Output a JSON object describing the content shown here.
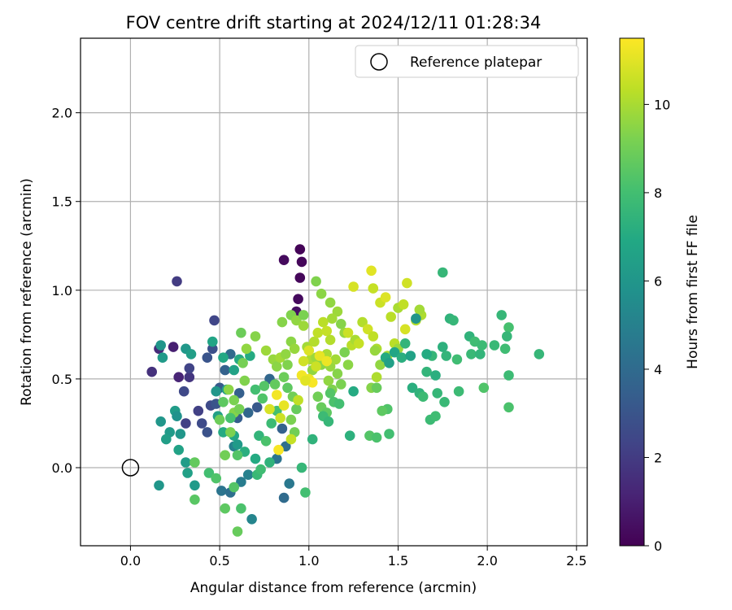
{
  "chart_data": {
    "type": "scatter",
    "title": "FOV centre drift starting at 2024/12/11 01:28:34",
    "xlabel": "Angular distance from reference (arcmin)",
    "ylabel": "Rotation from reference (arcmin)",
    "xlim": [
      -0.28,
      2.56
    ],
    "ylim": [
      -0.44,
      2.42
    ],
    "x_ticks": [
      "0.0",
      "0.5",
      "1.0",
      "1.5",
      "2.0",
      "2.5"
    ],
    "x_tick_values": [
      0,
      0.5,
      1.0,
      1.5,
      2.0,
      2.5
    ],
    "y_ticks": [
      "0.0",
      "0.5",
      "1.0",
      "1.5",
      "2.0"
    ],
    "y_tick_values": [
      0,
      0.5,
      1.0,
      1.5,
      2.0
    ],
    "grid": true,
    "legend_position": "top-right",
    "reference": {
      "label": "Reference platepar",
      "x": 0.0,
      "y": 0.0
    },
    "colorbar": {
      "label": "Hours from first FF file",
      "colormap": "viridis",
      "range": [
        0,
        11.5
      ],
      "ticks": [
        "0",
        "2",
        "4",
        "6",
        "8",
        "10"
      ],
      "tick_values": [
        0,
        2,
        4,
        6,
        8,
        10
      ]
    },
    "points": [
      [
        0.95,
        1.23,
        0.1
      ],
      [
        0.96,
        1.16,
        0.2
      ],
      [
        0.86,
        1.17,
        0.3
      ],
      [
        0.95,
        1.07,
        0.2
      ],
      [
        0.94,
        0.95,
        0.3
      ],
      [
        0.93,
        0.88,
        0.5
      ],
      [
        0.24,
        0.68,
        1.0
      ],
      [
        0.16,
        0.67,
        1.4
      ],
      [
        0.12,
        0.54,
        1.6
      ],
      [
        0.27,
        0.51,
        1.2
      ],
      [
        0.33,
        0.51,
        1.8
      ],
      [
        0.33,
        0.56,
        2.3
      ],
      [
        0.26,
        1.05,
        2.0
      ],
      [
        0.47,
        0.83,
        2.4
      ],
      [
        0.46,
        0.67,
        2.8
      ],
      [
        0.43,
        0.62,
        3.0
      ],
      [
        0.3,
        0.43,
        2.5
      ],
      [
        0.38,
        0.32,
        2.2
      ],
      [
        0.45,
        0.35,
        2.6
      ],
      [
        0.48,
        0.36,
        3.0
      ],
      [
        0.31,
        0.25,
        2.2
      ],
      [
        0.4,
        0.25,
        2.6
      ],
      [
        0.43,
        0.2,
        2.9
      ],
      [
        0.5,
        0.45,
        3.3
      ],
      [
        0.53,
        0.55,
        3.6
      ],
      [
        0.56,
        0.64,
        4.0
      ],
      [
        0.61,
        0.42,
        3.5
      ],
      [
        0.6,
        0.28,
        3.4
      ],
      [
        0.66,
        0.31,
        3.8
      ],
      [
        0.71,
        0.34,
        3.2
      ],
      [
        0.78,
        0.5,
        3.8
      ],
      [
        0.85,
        0.22,
        3.6
      ],
      [
        0.87,
        0.12,
        4.2
      ],
      [
        0.82,
        0.05,
        4.4
      ],
      [
        0.89,
        -0.09,
        4.6
      ],
      [
        0.86,
        -0.17,
        4.0
      ],
      [
        0.51,
        -0.13,
        4.4
      ],
      [
        0.56,
        -0.14,
        4.2
      ],
      [
        0.62,
        -0.08,
        4.8
      ],
      [
        0.66,
        -0.04,
        5.0
      ],
      [
        0.68,
        -0.29,
        5.2
      ],
      [
        0.58,
        0.12,
        5.0
      ],
      [
        0.17,
        0.69,
        6.0
      ],
      [
        0.18,
        0.62,
        6.2
      ],
      [
        0.17,
        0.26,
        6.0
      ],
      [
        0.22,
        0.2,
        6.2
      ],
      [
        0.2,
        0.16,
        6.4
      ],
      [
        0.25,
        0.32,
        6.3
      ],
      [
        0.26,
        0.29,
        5.8
      ],
      [
        0.28,
        0.19,
        6.0
      ],
      [
        0.27,
        0.1,
        6.6
      ],
      [
        0.31,
        0.03,
        6.3
      ],
      [
        0.32,
        -0.03,
        6.5
      ],
      [
        0.36,
        -0.1,
        6.2
      ],
      [
        0.16,
        -0.1,
        6.0
      ],
      [
        0.31,
        0.67,
        6.1
      ],
      [
        0.34,
        0.64,
        6.4
      ],
      [
        0.46,
        0.71,
        6.7
      ],
      [
        0.52,
        0.62,
        6.9
      ],
      [
        0.61,
        0.61,
        7.0
      ],
      [
        0.67,
        0.63,
        7.0
      ],
      [
        0.58,
        0.55,
        6.6
      ],
      [
        0.54,
        0.44,
        6.4
      ],
      [
        0.48,
        0.43,
        6.0
      ],
      [
        0.49,
        0.29,
        6.5
      ],
      [
        0.52,
        0.2,
        7.0
      ],
      [
        0.58,
        0.18,
        6.8
      ],
      [
        0.6,
        0.13,
        6.2
      ],
      [
        0.64,
        0.09,
        7.2
      ],
      [
        0.7,
        0.05,
        7.0
      ],
      [
        0.72,
        0.18,
        7.5
      ],
      [
        0.78,
        0.03,
        7.4
      ],
      [
        0.71,
        -0.04,
        7.7
      ],
      [
        0.73,
        -0.01,
        7.9
      ],
      [
        0.76,
        0.15,
        8.2
      ],
      [
        0.79,
        0.25,
        7.8
      ],
      [
        0.82,
        0.32,
        8.0
      ],
      [
        0.74,
        0.39,
        8.3
      ],
      [
        0.7,
        0.44,
        8.0
      ],
      [
        0.75,
        0.46,
        8.4
      ],
      [
        0.81,
        0.47,
        8.7
      ],
      [
        0.86,
        0.51,
        8.9
      ],
      [
        0.88,
        0.45,
        8.6
      ],
      [
        0.91,
        0.4,
        9.0
      ],
      [
        0.93,
        0.33,
        8.8
      ],
      [
        0.9,
        0.27,
        9.2
      ],
      [
        0.92,
        0.2,
        9.0
      ],
      [
        0.96,
        0.0,
        7.6
      ],
      [
        0.98,
        -0.14,
        8.0
      ],
      [
        0.36,
        -0.18,
        8.5
      ],
      [
        0.36,
        0.03,
        8.7
      ],
      [
        0.44,
        -0.03,
        8.0
      ],
      [
        0.48,
        -0.06,
        8.3
      ],
      [
        0.53,
        -0.23,
        8.6
      ],
      [
        0.58,
        -0.11,
        8.4
      ],
      [
        0.6,
        -0.36,
        8.8
      ],
      [
        0.62,
        -0.23,
        8.2
      ],
      [
        0.53,
        0.07,
        9.0
      ],
      [
        0.56,
        0.2,
        9.2
      ],
      [
        0.58,
        0.31,
        9.4
      ],
      [
        0.61,
        0.33,
        9.1
      ],
      [
        0.64,
        0.49,
        9.3
      ],
      [
        0.52,
        0.37,
        8.6
      ],
      [
        0.5,
        0.27,
        8.9
      ],
      [
        0.56,
        0.28,
        8.1
      ],
      [
        0.6,
        0.07,
        8.4
      ],
      [
        0.55,
        0.44,
        9.5
      ],
      [
        0.58,
        0.38,
        9.2
      ],
      [
        0.63,
        0.59,
        9.1
      ],
      [
        0.65,
        0.67,
        9.6
      ],
      [
        0.7,
        0.74,
        9.4
      ],
      [
        0.62,
        0.76,
        8.9
      ],
      [
        0.76,
        0.66,
        9.8
      ],
      [
        0.8,
        0.61,
        9.7
      ],
      [
        0.82,
        0.57,
        9.5
      ],
      [
        0.84,
        0.62,
        9.9
      ],
      [
        0.87,
        0.64,
        9.6
      ],
      [
        0.88,
        0.58,
        9.3
      ],
      [
        0.9,
        0.71,
        9.5
      ],
      [
        0.92,
        0.67,
        9.7
      ],
      [
        0.85,
        0.82,
        9.4
      ],
      [
        0.9,
        0.86,
        9.3
      ],
      [
        0.93,
        0.83,
        9.6
      ],
      [
        0.97,
        0.8,
        9.8
      ],
      [
        0.97,
        0.86,
        9.2
      ],
      [
        0.99,
        0.68,
        9.9
      ],
      [
        1.01,
        0.61,
        10.1
      ],
      [
        1.03,
        0.71,
        10.2
      ],
      [
        1.05,
        0.76,
        10.4
      ],
      [
        1.02,
        0.55,
        9.6
      ],
      [
        1.04,
        0.62,
        9.8
      ],
      [
        1.07,
        0.58,
        9.5
      ],
      [
        1.1,
        0.64,
        10.0
      ],
      [
        1.12,
        0.57,
        9.7
      ],
      [
        1.15,
        0.61,
        9.9
      ],
      [
        1.11,
        0.49,
        9.6
      ],
      [
        1.13,
        0.44,
        9.3
      ],
      [
        1.16,
        0.53,
        9.4
      ],
      [
        1.18,
        0.47,
        9.2
      ],
      [
        1.05,
        0.4,
        9.0
      ],
      [
        1.07,
        0.34,
        8.8
      ],
      [
        1.1,
        0.31,
        8.6
      ],
      [
        1.12,
        0.42,
        8.4
      ],
      [
        1.14,
        0.37,
        8.2
      ],
      [
        1.17,
        0.36,
        8.0
      ],
      [
        1.08,
        0.29,
        7.8
      ],
      [
        1.11,
        0.26,
        7.6
      ],
      [
        1.02,
        0.16,
        7.4
      ],
      [
        1.04,
        1.05,
        9.3
      ],
      [
        1.07,
        0.98,
        9.5
      ],
      [
        1.12,
        0.93,
        9.6
      ],
      [
        1.16,
        0.88,
        9.8
      ],
      [
        1.18,
        0.81,
        9.4
      ],
      [
        1.2,
        0.76,
        9.7
      ],
      [
        1.13,
        0.84,
        9.9
      ],
      [
        1.22,
        0.76,
        10.6
      ],
      [
        1.24,
        0.69,
        10.3
      ],
      [
        1.26,
        0.72,
        10.0
      ],
      [
        1.28,
        0.7,
        10.5
      ],
      [
        1.3,
        0.82,
        10.2
      ],
      [
        1.33,
        0.78,
        10.7
      ],
      [
        1.36,
        0.74,
        10.4
      ],
      [
        1.38,
        0.67,
        10.1
      ],
      [
        1.25,
        1.02,
        10.8
      ],
      [
        1.35,
        1.11,
        11.0
      ],
      [
        1.36,
        1.01,
        10.5
      ],
      [
        1.4,
        0.93,
        10.6
      ],
      [
        1.43,
        0.96,
        10.9
      ],
      [
        1.46,
        0.85,
        10.3
      ],
      [
        1.5,
        0.9,
        10.0
      ],
      [
        1.53,
        0.92,
        10.4
      ],
      [
        1.55,
        1.04,
        10.7
      ],
      [
        1.54,
        0.78,
        10.8
      ],
      [
        1.6,
        0.83,
        10.2
      ],
      [
        1.63,
        0.86,
        10.1
      ],
      [
        1.62,
        0.89,
        9.9
      ],
      [
        1.48,
        0.7,
        10.3
      ],
      [
        1.5,
        0.67,
        9.8
      ],
      [
        1.44,
        0.63,
        10.0
      ],
      [
        1.4,
        0.58,
        9.6
      ],
      [
        1.38,
        0.51,
        10.1
      ],
      [
        1.35,
        0.45,
        9.4
      ],
      [
        1.37,
        0.66,
        9.7
      ],
      [
        1.22,
        0.58,
        9.5
      ],
      [
        1.2,
        0.65,
        9.2
      ],
      [
        1.34,
        0.18,
        8.4
      ],
      [
        1.38,
        0.17,
        8.2
      ],
      [
        1.45,
        0.19,
        8.0
      ],
      [
        1.44,
        0.33,
        8.3
      ],
      [
        1.41,
        0.32,
        8.6
      ],
      [
        1.38,
        0.45,
        8.8
      ],
      [
        1.25,
        0.43,
        7.0
      ],
      [
        1.23,
        0.18,
        7.3
      ],
      [
        1.43,
        0.62,
        7.0
      ],
      [
        1.45,
        0.59,
        6.5
      ],
      [
        1.48,
        0.65,
        6.8
      ],
      [
        1.52,
        0.62,
        7.2
      ],
      [
        1.54,
        0.7,
        7.5
      ],
      [
        1.57,
        0.63,
        6.6
      ],
      [
        1.6,
        0.84,
        6.0
      ],
      [
        1.58,
        0.45,
        7.2
      ],
      [
        1.62,
        0.42,
        7.4
      ],
      [
        1.64,
        0.4,
        7.8
      ],
      [
        1.66,
        0.54,
        7.5
      ],
      [
        1.69,
        0.63,
        7.6
      ],
      [
        1.66,
        0.64,
        7.0
      ],
      [
        1.71,
        0.52,
        7.2
      ],
      [
        1.68,
        0.27,
        7.8
      ],
      [
        1.71,
        0.29,
        7.9
      ],
      [
        1.72,
        0.42,
        7.6
      ],
      [
        1.75,
        0.68,
        7.3
      ],
      [
        1.77,
        0.63,
        7.5
      ],
      [
        1.76,
        0.37,
        7.7
      ],
      [
        1.79,
        0.84,
        7.4
      ],
      [
        1.81,
        0.83,
        7.6
      ],
      [
        1.83,
        0.61,
        7.9
      ],
      [
        1.84,
        0.43,
        7.8
      ],
      [
        1.75,
        1.1,
        7.6
      ],
      [
        1.9,
        0.74,
        7.4
      ],
      [
        1.91,
        0.64,
        7.7
      ],
      [
        1.93,
        0.71,
        7.9
      ],
      [
        1.96,
        0.64,
        7.5
      ],
      [
        1.97,
        0.69,
        7.8
      ],
      [
        1.98,
        0.45,
        8.3
      ],
      [
        2.04,
        0.69,
        7.7
      ],
      [
        2.08,
        0.86,
        7.6
      ],
      [
        2.1,
        0.67,
        7.9
      ],
      [
        2.12,
        0.79,
        8.1
      ],
      [
        2.11,
        0.74,
        7.6
      ],
      [
        2.12,
        0.52,
        7.8
      ],
      [
        2.12,
        0.34,
        8.2
      ],
      [
        2.29,
        0.64,
        7.6
      ],
      [
        1.08,
        0.82,
        10.3
      ],
      [
        1.1,
        0.77,
        10.5
      ],
      [
        1.12,
        0.72,
        10.2
      ],
      [
        1.0,
        0.5,
        11.2
      ],
      [
        1.02,
        0.48,
        11.4
      ],
      [
        0.96,
        0.52,
        11.3
      ],
      [
        0.98,
        0.49,
        11.0
      ],
      [
        1.06,
        0.63,
        11.1
      ],
      [
        1.1,
        0.6,
        11.2
      ],
      [
        0.82,
        0.41,
        11.3
      ],
      [
        0.86,
        0.35,
        11.1
      ],
      [
        0.83,
        0.1,
        11.4
      ],
      [
        0.78,
        0.33,
        10.8
      ],
      [
        0.84,
        0.28,
        10.6
      ],
      [
        0.9,
        0.16,
        10.5
      ],
      [
        0.94,
        0.38,
        10.4
      ],
      [
        0.97,
        0.6,
        10.7
      ],
      [
        1.0,
        0.66,
        10.9
      ],
      [
        1.04,
        0.57,
        10.6
      ]
    ]
  }
}
